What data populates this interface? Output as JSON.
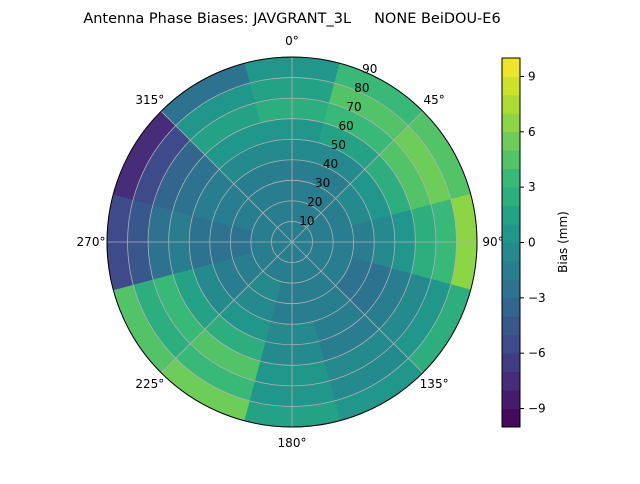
{
  "chart_data": {
    "type": "heatmap",
    "subtype": "polar-contour",
    "title": "Antenna Phase Biases: JAVGRANT_3L     NONE BeiDOU-E6",
    "angle_ticks": [
      {
        "deg": 0,
        "label": "0°"
      },
      {
        "deg": 45,
        "label": "45°"
      },
      {
        "deg": 90,
        "label": "90°"
      },
      {
        "deg": 135,
        "label": "135°"
      },
      {
        "deg": 180,
        "label": "180°"
      },
      {
        "deg": 225,
        "label": "225°"
      },
      {
        "deg": 270,
        "label": "270°"
      },
      {
        "deg": 315,
        "label": "315°"
      }
    ],
    "radial_ticks": [
      "10",
      "20",
      "30",
      "40",
      "50",
      "60",
      "70",
      "80",
      "90"
    ],
    "rlim": [
      0,
      90
    ],
    "azimuth_centers": [
      0,
      30,
      60,
      90,
      120,
      150,
      180,
      210,
      240,
      270,
      300,
      330
    ],
    "radial_bins": [
      [
        0,
        10
      ],
      [
        10,
        20
      ],
      [
        20,
        30
      ],
      [
        30,
        40
      ],
      [
        40,
        50
      ],
      [
        50,
        60
      ],
      [
        60,
        70
      ],
      [
        70,
        80
      ],
      [
        80,
        90
      ]
    ],
    "values": [
      [
        -2,
        -2,
        -2,
        -2,
        -1,
        0,
        2,
        1,
        0
      ],
      [
        -2,
        -2,
        -2,
        -2,
        -1,
        1,
        3,
        4,
        3
      ],
      [
        -2,
        -2,
        -2,
        -1,
        0,
        2,
        4,
        5,
        4
      ],
      [
        -2,
        -2,
        -2,
        -2,
        -1,
        0,
        2,
        3,
        6
      ],
      [
        -2,
        -2,
        -2,
        -3,
        -3,
        -2,
        -1,
        0,
        2
      ],
      [
        -2,
        -2,
        -2,
        -2,
        -2,
        -2,
        -1,
        -1,
        0
      ],
      [
        -2,
        -2,
        -2,
        -2,
        -1,
        -1,
        0,
        0,
        1
      ],
      [
        -2,
        -2,
        -1,
        -1,
        0,
        2,
        4,
        3,
        5
      ],
      [
        -2,
        -2,
        -2,
        -2,
        -1,
        1,
        3,
        2,
        4
      ],
      [
        -2,
        -2,
        -3,
        -3,
        -3,
        -2,
        -3,
        -5,
        -6
      ],
      [
        -2,
        -2,
        -2,
        -2,
        -2,
        -3,
        -4,
        -6,
        -8
      ],
      [
        -2,
        -2,
        -2,
        -2,
        -1,
        0,
        1,
        0,
        -3
      ]
    ],
    "colorbar": {
      "label": "Bias (mm)",
      "range": [
        -10,
        10
      ],
      "levels": 20,
      "ticks": [
        {
          "v": -9,
          "label": "−9"
        },
        {
          "v": -6,
          "label": "−6"
        },
        {
          "v": -3,
          "label": "−3"
        },
        {
          "v": 0,
          "label": "0"
        },
        {
          "v": 3,
          "label": "3"
        },
        {
          "v": 6,
          "label": "6"
        },
        {
          "v": 9,
          "label": "9"
        }
      ],
      "colormap": [
        "#440154",
        "#482878",
        "#3e4989",
        "#31688e",
        "#26828e",
        "#1f9e89",
        "#35b779",
        "#6ece58",
        "#b5de2b",
        "#fde725"
      ]
    }
  }
}
